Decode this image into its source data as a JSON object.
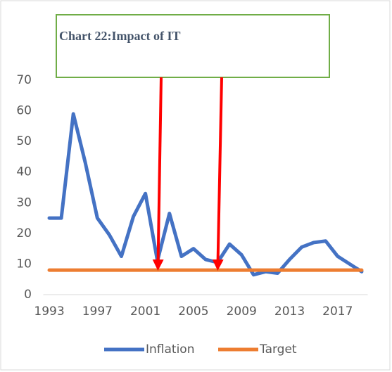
{
  "chart_data": {
    "type": "line",
    "title": "Chart 22:Impact of IT",
    "x": [
      1993,
      1994,
      1995,
      1996,
      1997,
      1998,
      1999,
      2000,
      2001,
      2002,
      2003,
      2004,
      2005,
      2006,
      2007,
      2008,
      2009,
      2010,
      2011,
      2012,
      2013,
      2014,
      2015,
      2016,
      2017,
      2018,
      2019
    ],
    "series": [
      {
        "name": "Inflation",
        "color": "#4472c4",
        "values": [
          25,
          25,
          59,
          43,
          25,
          19.5,
          12.5,
          25.5,
          33,
          11,
          26.5,
          12.5,
          15,
          11.5,
          10.5,
          16.5,
          13,
          6.5,
          7.5,
          7,
          11.5,
          15.5,
          17,
          17.5,
          12.5,
          10,
          7.5
        ]
      },
      {
        "name": "Target",
        "color": "#ed7d31",
        "values": [
          8,
          8,
          8,
          8,
          8,
          8,
          8,
          8,
          8,
          8,
          8,
          8,
          8,
          8,
          8,
          8,
          8,
          8,
          8,
          8,
          8,
          8,
          8,
          8,
          8,
          8,
          8
        ]
      }
    ],
    "xlim": [
      1992.5,
      2019.5
    ],
    "xticks": [
      1993,
      1997,
      2001,
      2005,
      2009,
      2013,
      2017
    ],
    "ylim": [
      0,
      70
    ],
    "yticks": [
      0,
      10,
      20,
      30,
      40,
      50,
      60,
      70
    ],
    "legend": "bottom"
  }
}
